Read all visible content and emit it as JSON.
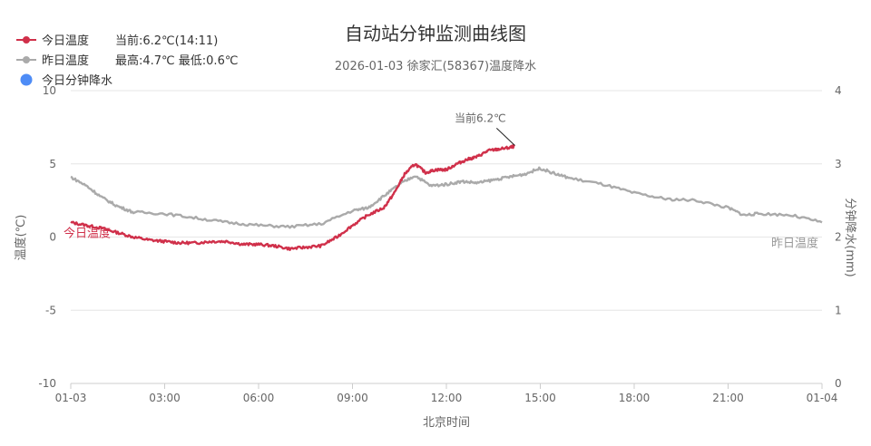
{
  "chart_data": {
    "type": "line",
    "title": "自动站分钟监测曲线图",
    "subtitle": "2026-01-03 徐家汇(58367)温度降水",
    "xlabel": "北京时间",
    "ylabel_left": "温度(℃)",
    "ylabel_right": "分钟降水(mm)",
    "ylim_left": [
      -10,
      10
    ],
    "ylim_right": [
      0,
      4
    ],
    "xlim_hours": [
      0,
      24
    ],
    "x_tick_labels": [
      "01-03",
      "03:00",
      "06:00",
      "09:00",
      "12:00",
      "15:00",
      "18:00",
      "21:00",
      "01-04"
    ],
    "y_left_ticks": [
      "10",
      "5",
      "0",
      "-5",
      "-10"
    ],
    "y_right_ticks": [
      "4",
      "3",
      "2",
      "1",
      "0"
    ],
    "grid": true,
    "legend_position": "top-left",
    "legend": [
      {
        "name": "今日温度",
        "info": "当前:6.2℃(14:11)",
        "color": "#d0304a",
        "marker": "line-circle"
      },
      {
        "name": "昨日温度",
        "info": "最高:4.7℃ 最低:0.6℃",
        "color": "#aaaaaa",
        "marker": "line-circle"
      },
      {
        "name": "今日分钟降水",
        "info": "",
        "color": "#4e8cf6",
        "marker": "dot"
      }
    ],
    "annotations": [
      {
        "text": "当前6.2℃",
        "x": "14:11",
        "y": 6.2
      },
      {
        "text": "今日温度",
        "series": "今日温度"
      },
      {
        "text": "昨日温度",
        "series": "昨日温度"
      }
    ],
    "series": [
      {
        "name": "今日温度",
        "color": "#d0304a",
        "x": [
          "00:00",
          "00:30",
          "01:00",
          "01:30",
          "02:00",
          "02:30",
          "03:00",
          "03:30",
          "04:00",
          "04:30",
          "05:00",
          "05:30",
          "06:00",
          "06:30",
          "07:00",
          "07:30",
          "08:00",
          "08:30",
          "09:00",
          "09:30",
          "10:00",
          "10:20",
          "10:40",
          "11:00",
          "11:20",
          "11:40",
          "12:00",
          "12:20",
          "12:40",
          "13:00",
          "13:20",
          "13:40",
          "14:00",
          "14:11"
        ],
        "values": [
          1.0,
          0.8,
          0.6,
          0.3,
          0.0,
          -0.2,
          -0.3,
          -0.4,
          -0.4,
          -0.3,
          -0.3,
          -0.5,
          -0.5,
          -0.6,
          -0.8,
          -0.7,
          -0.6,
          0.0,
          0.8,
          1.5,
          2.0,
          3.0,
          4.3,
          5.0,
          4.4,
          4.6,
          4.6,
          5.0,
          5.3,
          5.5,
          5.9,
          6.0,
          6.1,
          6.2
        ]
      },
      {
        "name": "昨日温度",
        "color": "#aaaaaa",
        "x": [
          "00:00",
          "00:30",
          "01:00",
          "01:30",
          "02:00",
          "03:00",
          "04:00",
          "05:00",
          "06:00",
          "07:00",
          "08:00",
          "09:00",
          "09:30",
          "10:00",
          "10:30",
          "11:00",
          "11:30",
          "12:00",
          "12:30",
          "13:00",
          "13:30",
          "14:00",
          "14:30",
          "15:00",
          "15:30",
          "16:00",
          "17:00",
          "18:00",
          "19:00",
          "20:00",
          "21:00",
          "21:30",
          "22:00",
          "23:00",
          "24:00"
        ],
        "values": [
          4.1,
          3.5,
          2.7,
          2.1,
          1.7,
          1.6,
          1.3,
          1.0,
          0.8,
          0.7,
          0.9,
          1.8,
          2.0,
          2.8,
          3.6,
          4.2,
          3.5,
          3.6,
          3.8,
          3.7,
          3.9,
          4.1,
          4.3,
          4.7,
          4.3,
          4.0,
          3.6,
          3.0,
          2.6,
          2.5,
          2.0,
          1.5,
          1.6,
          1.5,
          1.0
        ]
      },
      {
        "name": "今日分钟降水",
        "color": "#4e8cf6",
        "x": [],
        "values": []
      }
    ]
  }
}
